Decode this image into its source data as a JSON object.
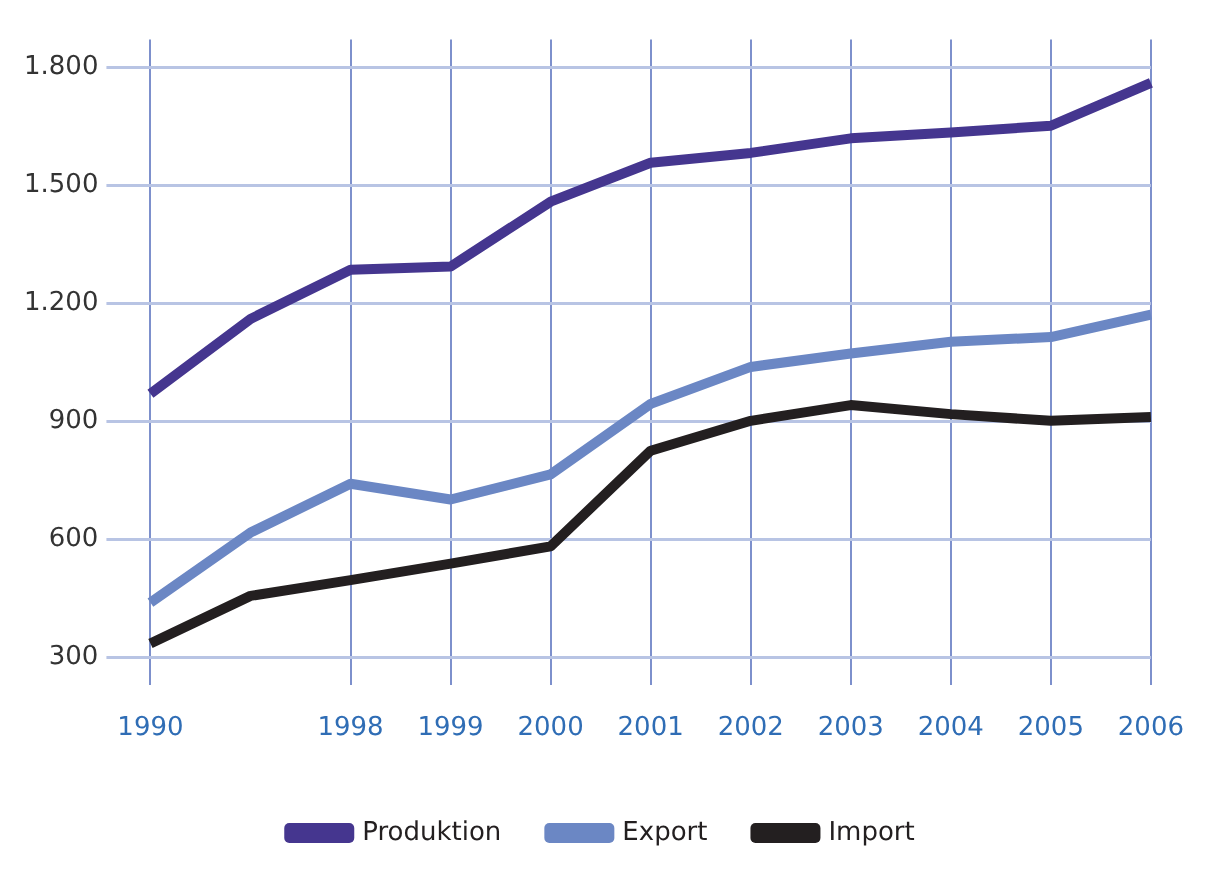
{
  "chart_data": {
    "type": "line",
    "categories": [
      "1990",
      null,
      "1998",
      "1999",
      "2000",
      "2001",
      "2002",
      "2003",
      "2004",
      "2005",
      "2006"
    ],
    "series": [
      {
        "name": "Produktion",
        "color": "#45368f",
        "values": [
          970,
          1160,
          1285,
          1293,
          1458,
          1557,
          1582,
          1619,
          1634,
          1651,
          1760
        ]
      },
      {
        "name": "Export",
        "color": "#6b87c4",
        "values": [
          439,
          617,
          741,
          701,
          765,
          944,
          1038,
          1072,
          1102,
          1114,
          1171
        ]
      },
      {
        "name": "Import",
        "color": "#231f20",
        "values": [
          335,
          456,
          496,
          538,
          582,
          825,
          901,
          941,
          918,
          901,
          911
        ]
      }
    ],
    "ylim": [
      230,
      1870
    ],
    "yticks": [
      {
        "value": 300,
        "label": "300"
      },
      {
        "value": 600,
        "label": "600"
      },
      {
        "value": 900,
        "label": "900"
      },
      {
        "value": 1200,
        "label": "1.200"
      },
      {
        "value": 1500,
        "label": "1.500"
      },
      {
        "value": 1800,
        "label": "1.800"
      }
    ],
    "grid": true,
    "legend": "bottom",
    "marker": "none",
    "line_style": "solid"
  }
}
